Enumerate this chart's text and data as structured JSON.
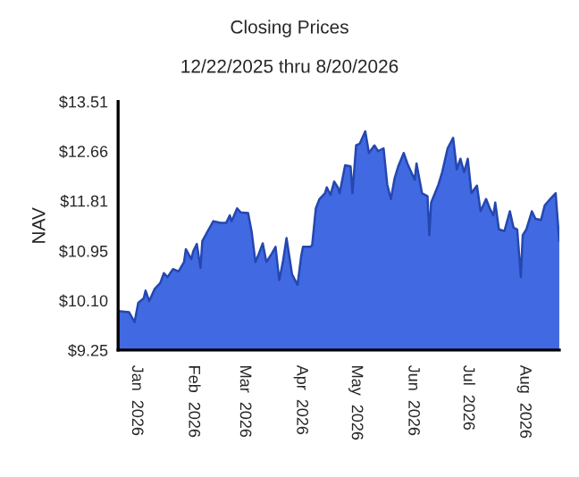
{
  "chart_data": {
    "type": "area",
    "title": "Closing Prices",
    "subtitle": "12/22/2025 thru 8/20/2026",
    "ylabel": "NAV",
    "color": "#4169e1",
    "x": [
      "2025-12-22",
      "2025-12-28",
      "2025-12-31",
      "2026-01-02",
      "2026-01-05",
      "2026-01-06",
      "2026-01-08",
      "2026-01-11",
      "2026-01-14",
      "2026-01-16",
      "2026-01-18",
      "2026-01-21",
      "2026-01-24",
      "2026-01-27",
      "2026-01-28",
      "2026-01-31",
      "2026-02-01",
      "2026-02-03",
      "2026-02-05",
      "2026-02-06",
      "2026-02-09",
      "2026-02-12",
      "2026-02-16",
      "2026-02-19",
      "2026-02-21",
      "2026-02-22",
      "2026-02-25",
      "2026-02-27",
      "2026-03-03",
      "2026-03-05",
      "2026-03-07",
      "2026-03-09",
      "2026-03-11",
      "2026-03-13",
      "2026-03-16",
      "2026-03-18",
      "2026-03-20",
      "2026-03-22",
      "2026-03-24",
      "2026-03-27",
      "2026-03-30",
      "2026-04-01",
      "2026-04-02",
      "2026-04-06",
      "2026-04-07",
      "2026-04-09",
      "2026-04-11",
      "2026-04-14",
      "2026-04-15",
      "2026-04-17",
      "2026-04-19",
      "2026-04-21",
      "2026-04-22",
      "2026-04-25",
      "2026-04-28",
      "2026-04-29",
      "2026-05-01",
      "2026-05-03",
      "2026-05-06",
      "2026-05-08",
      "2026-05-11",
      "2026-05-13",
      "2026-05-16",
      "2026-05-18",
      "2026-05-20",
      "2026-05-22",
      "2026-05-24",
      "2026-05-27",
      "2026-05-29",
      "2026-06-02",
      "2026-06-03",
      "2026-06-06",
      "2026-06-09",
      "2026-06-10",
      "2026-06-11",
      "2026-06-15",
      "2026-06-17",
      "2026-06-20",
      "2026-06-23",
      "2026-06-25",
      "2026-06-27",
      "2026-06-29",
      "2026-07-01",
      "2026-07-03",
      "2026-07-06",
      "2026-07-08",
      "2026-07-11",
      "2026-07-13",
      "2026-07-15",
      "2026-07-16",
      "2026-07-18",
      "2026-07-21",
      "2026-07-24",
      "2026-07-26",
      "2026-07-28",
      "2026-07-30",
      "2026-07-31",
      "2026-08-02",
      "2026-08-05",
      "2026-08-07",
      "2026-08-10",
      "2026-08-12",
      "2026-08-15",
      "2026-08-18",
      "2026-08-19",
      "2026-08-20"
    ],
    "values": [
      9.92,
      9.9,
      9.73,
      10.06,
      10.14,
      10.27,
      10.09,
      10.3,
      10.4,
      10.57,
      10.5,
      10.64,
      10.6,
      10.76,
      10.98,
      10.81,
      10.94,
      11.07,
      10.66,
      11.12,
      11.29,
      11.46,
      11.43,
      11.43,
      11.56,
      11.46,
      11.68,
      11.61,
      11.6,
      11.27,
      10.76,
      10.91,
      11.08,
      10.76,
      10.91,
      11.02,
      10.45,
      10.76,
      11.17,
      10.55,
      10.37,
      10.86,
      11.02,
      11.02,
      11.05,
      11.68,
      11.84,
      11.94,
      12.04,
      11.91,
      12.14,
      12.04,
      11.94,
      12.42,
      12.4,
      11.94,
      12.76,
      12.79,
      13.0,
      12.63,
      12.76,
      12.66,
      12.71,
      12.09,
      11.84,
      12.19,
      12.4,
      12.63,
      12.45,
      12.17,
      12.45,
      11.94,
      11.89,
      11.22,
      11.78,
      12.09,
      12.3,
      12.71,
      12.89,
      12.35,
      12.53,
      12.3,
      12.53,
      11.94,
      12.07,
      11.63,
      11.84,
      11.68,
      11.56,
      11.78,
      11.32,
      11.29,
      11.63,
      11.35,
      11.32,
      10.5,
      11.22,
      11.32,
      11.63,
      11.5,
      11.48,
      11.73,
      11.84,
      11.94,
      11.52,
      11.12
    ],
    "xlim": [
      "2025-12-22",
      "2026-08-20"
    ],
    "xticks": [
      {
        "value": "2026-01-01",
        "label": "Jan  2026"
      },
      {
        "value": "2026-02-01",
        "label": "Feb  2026"
      },
      {
        "value": "2026-03-01",
        "label": "Mar  2026"
      },
      {
        "value": "2026-04-01",
        "label": "Apr  2026"
      },
      {
        "value": "2026-05-01",
        "label": "May  2026"
      },
      {
        "value": "2026-06-01",
        "label": "Jun  2026"
      },
      {
        "value": "2026-07-01",
        "label": "Jul  2026"
      },
      {
        "value": "2026-08-01",
        "label": "Aug  2026"
      }
    ],
    "ylim": [
      9.25,
      13.51
    ],
    "yticks": [
      {
        "value": 9.25,
        "label": "$9.25"
      },
      {
        "value": 10.1,
        "label": "$10.10"
      },
      {
        "value": 10.95,
        "label": "$10.95"
      },
      {
        "value": 11.81,
        "label": "$11.81"
      },
      {
        "value": 12.66,
        "label": "$12.66"
      },
      {
        "value": 13.51,
        "label": "$13.51"
      }
    ],
    "grid": false,
    "legend": false
  }
}
